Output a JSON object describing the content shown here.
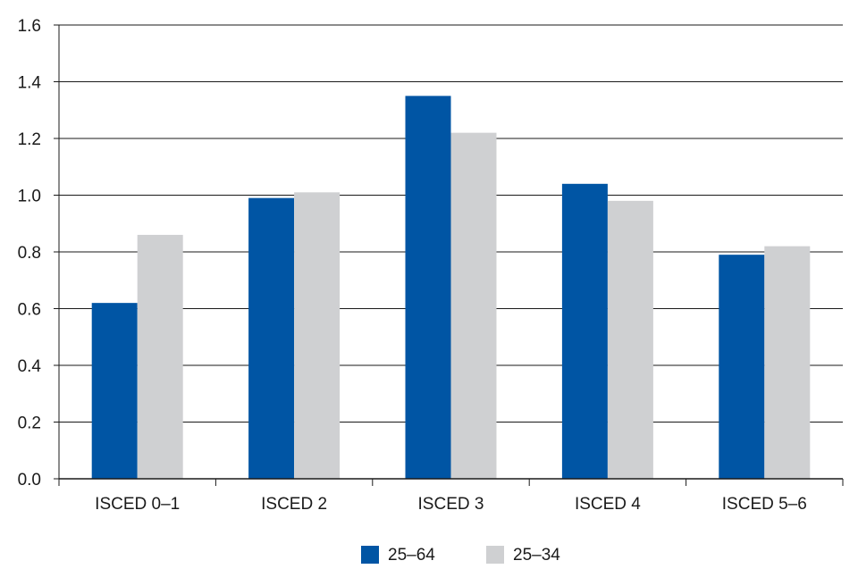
{
  "chart_data": {
    "type": "bar",
    "categories": [
      "ISCED 0–1",
      "ISCED 2",
      "ISCED 3",
      "ISCED 4",
      "ISCED 5–6"
    ],
    "series": [
      {
        "name": "25–64",
        "values": [
          0.62,
          0.99,
          1.35,
          1.04,
          0.79
        ],
        "color": "#0055a4"
      },
      {
        "name": "25–34",
        "values": [
          0.86,
          1.01,
          1.22,
          0.98,
          0.82
        ],
        "color": "#cfd0d2"
      }
    ],
    "y_ticks": [
      "0.0",
      "0.2",
      "0.4",
      "0.6",
      "0.8",
      "1.0",
      "1.2",
      "1.4",
      "1.6"
    ],
    "ylim": [
      0,
      1.6
    ],
    "grid": true,
    "legend_position": "bottom"
  }
}
